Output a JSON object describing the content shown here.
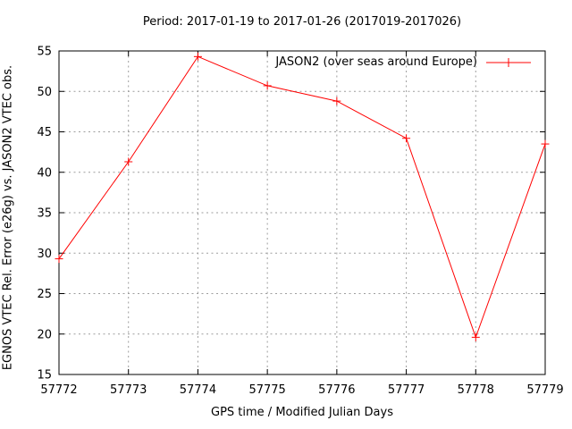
{
  "chart_data": {
    "type": "line",
    "title": "Period: 2017-01-19 to 2017-01-26 (2017019-2017026)",
    "xlabel": "GPS time / Modified Julian Days",
    "ylabel": "EGNOS VTEC Rel. Error (e26g) vs. JASON2 VTEC obs.",
    "xlim": [
      57772,
      57779
    ],
    "ylim": [
      15,
      55
    ],
    "xticks": [
      57772,
      57773,
      57774,
      57775,
      57776,
      57777,
      57778,
      57779
    ],
    "yticks": [
      15,
      20,
      25,
      30,
      35,
      40,
      45,
      50,
      55
    ],
    "grid": true,
    "legend_position": "top-right-inside",
    "series": [
      {
        "name": "JASON2 (over seas around Europe)",
        "color": "#ff0000",
        "marker": "plus",
        "x": [
          57772,
          57773,
          57774,
          57775,
          57776,
          57777,
          57778,
          57779
        ],
        "values": [
          29.3,
          41.3,
          54.3,
          50.7,
          48.8,
          44.2,
          19.6,
          43.5
        ]
      }
    ],
    "colors": {
      "background": "#ffffff",
      "border": "#000000",
      "grid": "#9e9e9e",
      "text": "#000000"
    }
  }
}
